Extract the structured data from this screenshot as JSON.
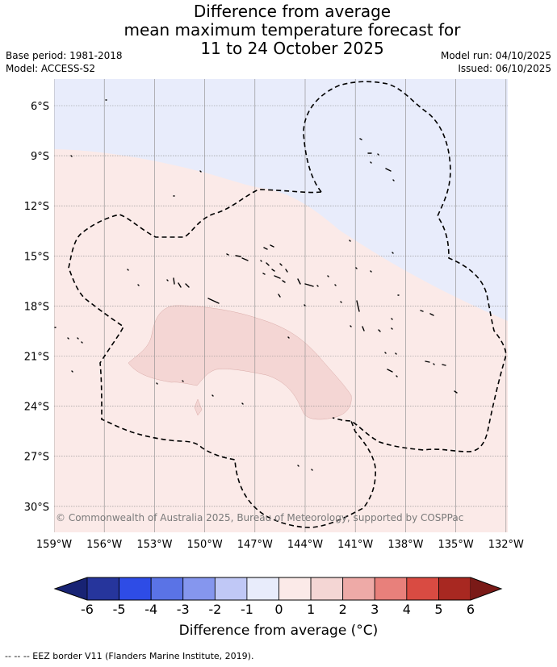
{
  "title": {
    "line1": "Difference from average",
    "line2": "mean maximum temperature forecast for",
    "line3": "11 to 24 October 2025"
  },
  "meta": {
    "base_period": "Base period: 1981-2018",
    "model": "Model: ACCESS-S2",
    "model_run": "Model run: 04/10/2025",
    "issued": "Issued: 06/10/2025"
  },
  "map": {
    "lon_ticks": [
      "159°W",
      "156°W",
      "153°W",
      "150°W",
      "147°W",
      "144°W",
      "141°W",
      "138°W",
      "135°W",
      "132°W"
    ],
    "lat_ticks": [
      "6°S",
      "9°S",
      "12°S",
      "15°S",
      "18°S",
      "21°S",
      "24°S",
      "27°S",
      "30°S"
    ],
    "copyright": "© Commonwealth of Australia 2025, Bureau of Meteorology, supported by COSPPac",
    "colors": {
      "cool_minus1_to_0": "#e8ecfb",
      "warm_0_to_1": "#fbeae8",
      "warm_1_to_2": "#f4d6d4"
    }
  },
  "colorbar": {
    "ticks": [
      "-6",
      "-5",
      "-4",
      "-3",
      "-2",
      "-1",
      "0",
      "1",
      "2",
      "3",
      "4",
      "5",
      "6"
    ],
    "colors": [
      "#26359c",
      "#2e4ce6",
      "#5a73e6",
      "#8596ee",
      "#c0c8f6",
      "#e8ecfb",
      "#fbeae8",
      "#f4d6d4",
      "#eeaaa7",
      "#e8807b",
      "#d94b42",
      "#a82821"
    ],
    "under_color": "#182374",
    "over_color": "#7a1a17",
    "label": "Difference from average (°C)"
  },
  "legend": {
    "eez": "--  --  -- EEZ border V11 (Flanders Marine Institute, 2019)."
  }
}
